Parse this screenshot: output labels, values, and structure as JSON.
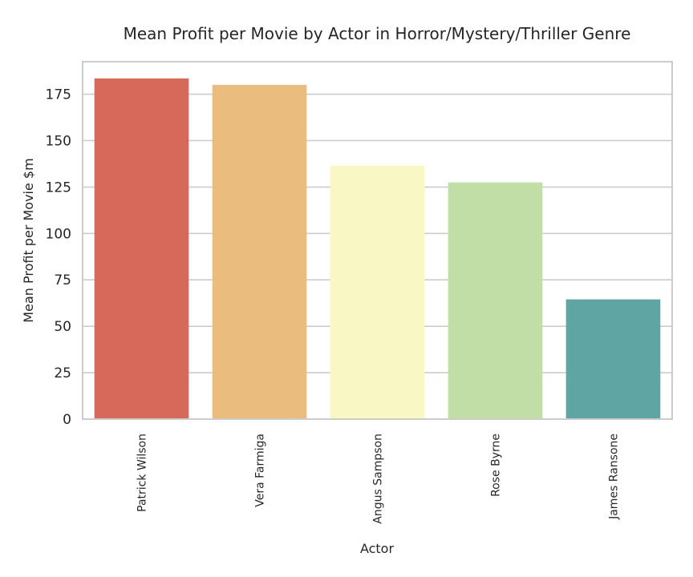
{
  "chart_data": {
    "type": "bar",
    "title": "Mean Profit per Movie by Actor in Horror/Mystery/Thriller Genre",
    "xlabel": "Actor",
    "ylabel": "Mean Profit per Movie $m",
    "categories": [
      "Patrick Wilson",
      "Vera Farmiga",
      "Angus Sampson",
      "Rose Byrne",
      "James Ransone"
    ],
    "values": [
      183.5,
      180,
      136.5,
      127.5,
      64.5
    ],
    "colors": [
      "#d7695a",
      "#eabd7e",
      "#f9f8c5",
      "#c2dea7",
      "#5ea5a3"
    ],
    "ylim": [
      0,
      192.5
    ],
    "yticks": [
      0,
      25,
      50,
      75,
      100,
      125,
      150,
      175
    ],
    "grid": true,
    "legend": "none"
  }
}
